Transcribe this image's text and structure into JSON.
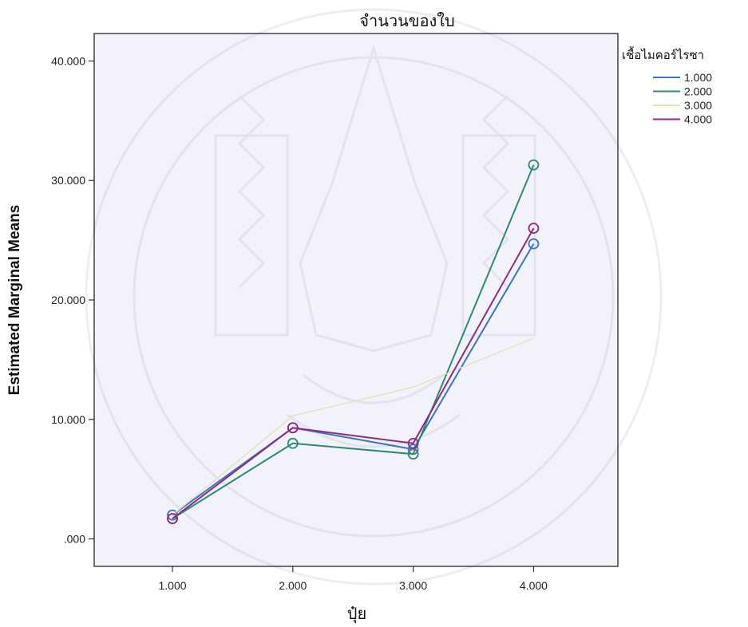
{
  "chart_data": {
    "type": "line",
    "title": "จำนวนของใบ",
    "xlabel": "ปุ๋ย",
    "ylabel": "Estimated Marginal Means",
    "x": [
      1,
      2,
      3,
      4
    ],
    "x_tick_labels": [
      "1.000",
      "2.000",
      "3.000",
      "4.000"
    ],
    "y_tick_labels": [
      ".000",
      "10.000",
      "20.000",
      "30.000",
      "40.000"
    ],
    "y_ticks": [
      0,
      10,
      20,
      30,
      40
    ],
    "xlim": [
      0.35,
      4.7
    ],
    "ylim": [
      -2.3,
      42.3
    ],
    "grid": false,
    "legend_title": "เชื้อไมคอร์ไรซา",
    "legend_position": "top-right",
    "series": [
      {
        "name": "1.000",
        "color": "#3c74c4",
        "values": [
          2.0,
          9.3,
          7.5,
          24.7
        ],
        "markers": true
      },
      {
        "name": "2.000",
        "color": "#2e8b6e",
        "values": [
          1.7,
          8.0,
          7.1,
          31.3
        ],
        "markers": true
      },
      {
        "name": "3.000",
        "color": "#e6e2b6",
        "values": [
          2.0,
          10.3,
          12.7,
          16.8
        ],
        "markers": false
      },
      {
        "name": "4.000",
        "color": "#8e2c7e",
        "values": [
          1.7,
          9.3,
          8.0,
          26.0
        ],
        "markers": true
      }
    ],
    "plot_background": "#f1f2fb"
  }
}
